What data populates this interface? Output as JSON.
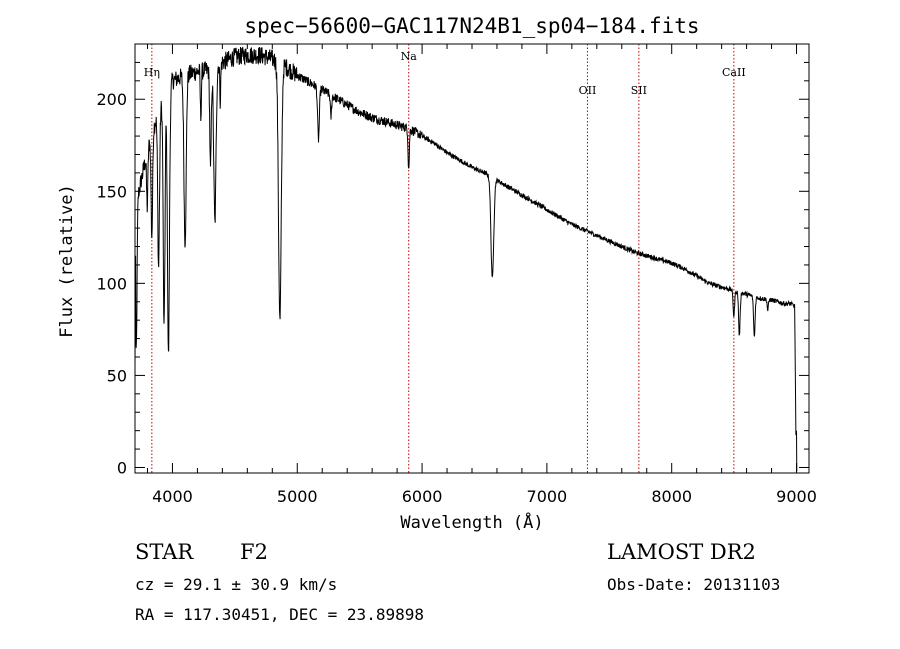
{
  "chart_data": {
    "type": "line",
    "title": "spec−56600−GAC117N24B1_sp04−184.fits",
    "xlabel": "Wavelength (Å)",
    "ylabel": "Flux (relative)",
    "xlim": [
      3700,
      9100
    ],
    "ylim": [
      -3,
      230
    ],
    "xticks": [
      4000,
      5000,
      6000,
      7000,
      8000,
      9000
    ],
    "yticks": [
      0,
      50,
      100,
      150,
      200
    ],
    "continuum": [
      [
        3700,
        140
      ],
      [
        3800,
        172
      ],
      [
        3880,
        192
      ],
      [
        4000,
        210
      ],
      [
        4100,
        213
      ],
      [
        4200,
        215
      ],
      [
        4300,
        216
      ],
      [
        4400,
        220
      ],
      [
        4500,
        223
      ],
      [
        4600,
        224
      ],
      [
        4700,
        224
      ],
      [
        4800,
        222
      ],
      [
        4900,
        218
      ],
      [
        5000,
        213
      ],
      [
        5100,
        209
      ],
      [
        5200,
        205
      ],
      [
        5300,
        201
      ],
      [
        5400,
        197
      ],
      [
        5500,
        193
      ],
      [
        5600,
        190
      ],
      [
        5700,
        188
      ],
      [
        5800,
        186
      ],
      [
        5900,
        184
      ],
      [
        6000,
        180
      ],
      [
        6100,
        176
      ],
      [
        6200,
        171
      ],
      [
        6300,
        167
      ],
      [
        6400,
        163
      ],
      [
        6500,
        160
      ],
      [
        6600,
        156
      ],
      [
        6700,
        152
      ],
      [
        6800,
        148
      ],
      [
        6900,
        144
      ],
      [
        7000,
        140
      ],
      [
        7100,
        136
      ],
      [
        7200,
        132
      ],
      [
        7300,
        129
      ],
      [
        7400,
        126
      ],
      [
        7500,
        123
      ],
      [
        7600,
        120
      ],
      [
        7700,
        117
      ],
      [
        7800,
        115
      ],
      [
        7900,
        113
      ],
      [
        8000,
        111
      ],
      [
        8100,
        108
      ],
      [
        8200,
        104
      ],
      [
        8300,
        100
      ],
      [
        8400,
        98
      ],
      [
        8500,
        96
      ],
      [
        8600,
        94
      ],
      [
        8700,
        92
      ],
      [
        8800,
        91
      ],
      [
        8900,
        89
      ],
      [
        8950,
        89
      ],
      [
        9000,
        87
      ]
    ],
    "absorption_features": [
      {
        "center": 3710,
        "depth": 80,
        "width": 6
      },
      {
        "center": 3798,
        "depth": 30,
        "width": 5
      },
      {
        "center": 3835,
        "depth": 55,
        "width": 6
      },
      {
        "center": 3889,
        "depth": 85,
        "width": 7
      },
      {
        "center": 3933,
        "depth": 125,
        "width": 7
      },
      {
        "center": 3968,
        "depth": 145,
        "width": 8
      },
      {
        "center": 4101,
        "depth": 90,
        "width": 9
      },
      {
        "center": 4227,
        "depth": 25,
        "width": 4
      },
      {
        "center": 4305,
        "depth": 55,
        "width": 6
      },
      {
        "center": 4340,
        "depth": 85,
        "width": 9
      },
      {
        "center": 4383,
        "depth": 20,
        "width": 4
      },
      {
        "center": 4861,
        "depth": 140,
        "width": 11
      },
      {
        "center": 5170,
        "depth": 28,
        "width": 7
      },
      {
        "center": 5270,
        "depth": 12,
        "width": 5
      },
      {
        "center": 5893,
        "depth": 22,
        "width": 5
      },
      {
        "center": 6563,
        "depth": 55,
        "width": 11
      },
      {
        "center": 8498,
        "depth": 14,
        "width": 6
      },
      {
        "center": 8542,
        "depth": 24,
        "width": 6
      },
      {
        "center": 8662,
        "depth": 22,
        "width": 6
      },
      {
        "center": 8770,
        "depth": 6,
        "width": 5
      }
    ],
    "spectral_lines": [
      {
        "name": "Hη",
        "wavelength": 3835
      },
      {
        "name": "Na",
        "wavelength": 5893
      },
      {
        "name": "OII",
        "wavelength": 7325
      },
      {
        "name": "SII",
        "wavelength": 7737
      },
      {
        "name": "CaII",
        "wavelength": 8498
      }
    ]
  },
  "info": {
    "object_class": "STAR",
    "subclass": "F2",
    "survey": "LAMOST DR2",
    "cz": "cz = 29.1 ± 30.9 km/s",
    "obs_date": "Obs-Date: 20131103",
    "coords": "RA = 117.30451, DEC =  23.89898"
  },
  "colors": {
    "spectrum": "#000000",
    "line_marker": "#c00000",
    "axis": "#000000",
    "background": "#ffffff"
  }
}
